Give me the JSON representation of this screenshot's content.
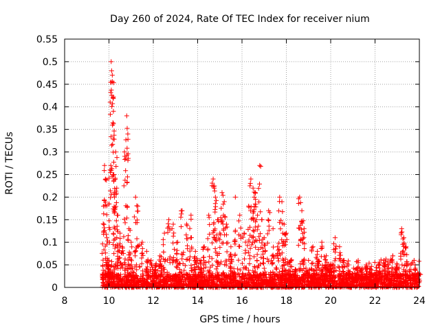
{
  "chart_data": {
    "type": "scatter",
    "title": "Day 260 of 2024, Rate Of TEC Index for receiver nium",
    "xlabel": "GPS time / hours",
    "ylabel": "ROTI / TECUs",
    "xlim": [
      8,
      24
    ],
    "ylim": [
      0,
      0.55
    ],
    "xticks": [
      8,
      10,
      12,
      14,
      16,
      18,
      20,
      22,
      24
    ],
    "yticks": [
      0,
      0.05,
      0.1,
      0.15,
      0.2,
      0.25,
      0.3,
      0.35,
      0.4,
      0.45,
      0.5,
      0.55
    ],
    "grid": true,
    "marker": "+",
    "series": [
      {
        "name": "ROTI",
        "color": "#ff0000",
        "x": [
          9.75,
          9.8,
          9.85,
          9.9,
          9.95,
          10.0,
          10.05,
          10.1,
          10.12,
          10.15,
          10.18,
          10.2,
          10.22,
          10.25,
          10.3,
          10.35,
          10.4,
          10.5,
          10.6,
          10.7,
          10.8,
          10.85,
          10.9,
          11.0,
          11.2,
          11.3,
          11.5,
          11.7,
          11.9,
          12.1,
          12.3,
          12.5,
          12.7,
          12.9,
          13.1,
          13.3,
          13.5,
          13.7,
          13.9,
          14.1,
          14.3,
          14.5,
          14.7,
          14.75,
          14.8,
          14.9,
          15.0,
          15.1,
          15.2,
          15.3,
          15.5,
          15.7,
          15.9,
          16.1,
          16.3,
          16.4,
          16.5,
          16.55,
          16.6,
          16.7,
          16.8,
          16.9,
          17.0,
          17.2,
          17.4,
          17.6,
          17.7,
          17.8,
          17.9,
          18.0,
          18.2,
          18.4,
          18.6,
          18.7,
          18.8,
          19.0,
          19.2,
          19.4,
          19.6,
          19.8,
          20.0,
          20.2,
          20.4,
          20.6,
          20.8,
          21.0,
          21.2,
          21.4,
          21.6,
          21.8,
          22.0,
          22.2,
          22.4,
          22.6,
          22.8,
          23.0,
          23.2,
          23.3,
          23.4,
          23.6,
          23.8,
          24.0
        ],
        "y": [
          0.18,
          0.27,
          0.24,
          0.11,
          0.06,
          0.05,
          0.26,
          0.5,
          0.48,
          0.47,
          0.42,
          0.39,
          0.25,
          0.2,
          0.3,
          0.22,
          0.16,
          0.12,
          0.09,
          0.3,
          0.38,
          0.34,
          0.13,
          0.1,
          0.2,
          0.18,
          0.1,
          0.08,
          0.06,
          0.05,
          0.07,
          0.12,
          0.15,
          0.14,
          0.1,
          0.17,
          0.14,
          0.16,
          0.08,
          0.06,
          0.09,
          0.16,
          0.24,
          0.22,
          0.2,
          0.15,
          0.12,
          0.21,
          0.19,
          0.14,
          0.09,
          0.2,
          0.16,
          0.12,
          0.18,
          0.24,
          0.22,
          0.2,
          0.21,
          0.16,
          0.27,
          0.15,
          0.11,
          0.17,
          0.13,
          0.09,
          0.2,
          0.19,
          0.14,
          0.12,
          0.06,
          0.04,
          0.2,
          0.17,
          0.13,
          0.06,
          0.09,
          0.08,
          0.1,
          0.07,
          0.05,
          0.11,
          0.09,
          0.06,
          0.05,
          0.03,
          0.03,
          0.04,
          0.05,
          0.04,
          0.03,
          0.05,
          0.06,
          0.05,
          0.07,
          0.05,
          0.13,
          0.11,
          0.09,
          0.05,
          0.04,
          0.03
        ]
      }
    ],
    "background_band": {
      "x_start": 9.7,
      "x_end": 24,
      "y_low": 0,
      "y_high": 0.03
    }
  }
}
